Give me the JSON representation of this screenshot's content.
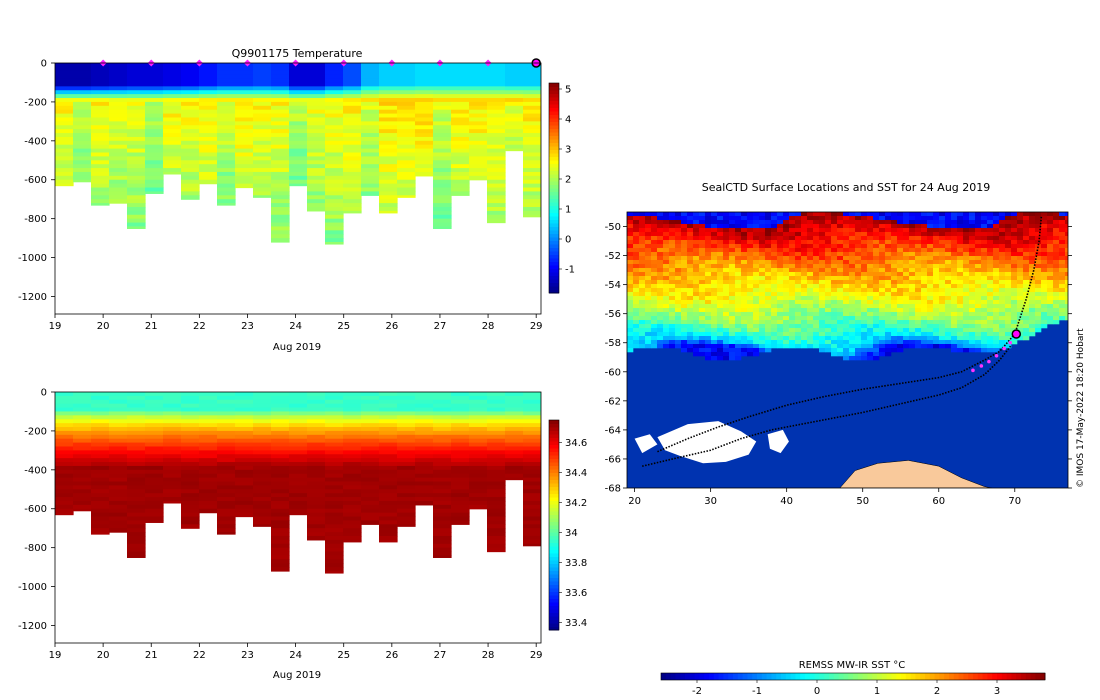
{
  "chart_data": [
    {
      "type": "heatmap",
      "title": "Q9901175  Temperature",
      "xlabel": "Aug 2019",
      "x_ticks": [
        "19",
        "20",
        "21",
        "22",
        "23",
        "24",
        "25",
        "26",
        "27",
        "28",
        "29"
      ],
      "xlim": [
        19,
        29.1
      ],
      "y_ticks": [
        "0",
        "-200",
        "-400",
        "-600",
        "-800",
        "-1000",
        "-1200"
      ],
      "ylim": [
        -1290,
        0
      ],
      "colorbar_ticks": [
        "5",
        "4",
        "3",
        "2",
        "1",
        "0",
        "-1"
      ],
      "colorbar_range": [
        -1.8,
        5.2
      ],
      "profile_markers_x": [
        20,
        21,
        22,
        23,
        24,
        25,
        26,
        27,
        28
      ],
      "current_profile_x": 29,
      "profile_max_depth": [
        630,
        610,
        730,
        720,
        850,
        670,
        570,
        700,
        620,
        730,
        640,
        690,
        920,
        630,
        760,
        930,
        770,
        680,
        770,
        690,
        580,
        850,
        680,
        600,
        820,
        450,
        790
      ],
      "column_values": [
        {
          "surface": -1.5,
          "below_200": 2.6
        },
        {
          "surface": -1.4,
          "below_200": 2.6
        },
        {
          "surface": -1.3,
          "below_200": 2.5
        },
        {
          "surface": -1.2,
          "below_200": 2.5
        },
        {
          "surface": -1.1,
          "below_200": 2.6
        },
        {
          "surface": -1.0,
          "below_200": 2.6
        },
        {
          "surface": -0.8,
          "below_200": 2.7
        },
        {
          "surface": -0.6,
          "below_200": 2.7
        },
        {
          "surface": -0.5,
          "below_200": 2.6
        },
        {
          "surface": -0.6,
          "below_200": 2.6
        },
        {
          "surface": -1.2,
          "below_200": 2.5
        },
        {
          "surface": -0.7,
          "below_200": 2.6
        },
        {
          "surface": -0.4,
          "below_200": 2.7
        },
        {
          "surface": 0.3,
          "below_200": 2.7
        },
        {
          "surface": 0.5,
          "below_200": 2.8
        },
        {
          "surface": 0.6,
          "below_200": 2.8
        },
        {
          "surface": 0.6,
          "below_200": 2.7
        },
        {
          "surface": 0.6,
          "below_200": 2.7
        },
        {
          "surface": 0.6,
          "below_200": 2.7
        },
        {
          "surface": 0.5,
          "below_200": 2.8
        },
        {
          "surface": 0.5,
          "below_200": 2.7
        }
      ]
    },
    {
      "type": "heatmap",
      "title": "",
      "xlabel": "Aug 2019",
      "x_ticks": [
        "19",
        "20",
        "21",
        "22",
        "23",
        "24",
        "25",
        "26",
        "27",
        "28",
        "29"
      ],
      "xlim": [
        19,
        29.1
      ],
      "y_ticks": [
        "0",
        "-200",
        "-400",
        "-600",
        "-800",
        "-1000",
        "-1200"
      ],
      "ylim": [
        -1290,
        0
      ],
      "colorbar_ticks": [
        "34.6",
        "34.4",
        "34.2",
        "34",
        "33.8",
        "33.6",
        "33.4"
      ],
      "colorbar_range": [
        33.35,
        34.75
      ],
      "surface_salinity": 33.95,
      "deep_salinity": 34.72
    },
    {
      "type": "heatmap",
      "title": "SealCTD Surface Locations and SST for 24 Aug 2019",
      "xlabel": "",
      "x_ticks": [
        "20",
        "30",
        "40",
        "50",
        "60",
        "70"
      ],
      "xlim": [
        19,
        77
      ],
      "y_ticks": [
        "-50",
        "-52",
        "-54",
        "-56",
        "-58",
        "-60",
        "-62",
        "-64",
        "-66",
        "-68"
      ],
      "ylim": [
        -68,
        -49
      ],
      "colorbar_label": "REMSS MW-IR SST °C",
      "colorbar_ticks": [
        "-2",
        "-1",
        "0",
        "1",
        "2",
        "3"
      ],
      "colorbar_range": [
        -2.6,
        3.8
      ],
      "sst_zonal_profile": [
        {
          "lat": -49.5,
          "sst": 3.6
        },
        {
          "lat": -51,
          "sst": 2.8
        },
        {
          "lat": -53,
          "sst": 1.9
        },
        {
          "lat": -55,
          "sst": 1.2
        },
        {
          "lat": -56.5,
          "sst": 0.5
        },
        {
          "lat": -58,
          "sst": -0.5
        },
        {
          "lat": -58.6,
          "sst": -1.8
        },
        {
          "lat": -68,
          "sst": -1.8
        }
      ],
      "current_position": {
        "lon": 70.2,
        "lat": -57.4
      },
      "recent_positions": [
        {
          "lon": 64.5,
          "lat": -59.9
        },
        {
          "lon": 65.6,
          "lat": -59.6
        },
        {
          "lon": 66.6,
          "lat": -59.3
        },
        {
          "lon": 67.6,
          "lat": -58.9
        },
        {
          "lon": 68.6,
          "lat": -58.4
        },
        {
          "lon": 69.4,
          "lat": -58.0
        }
      ],
      "track_a": [
        [
          23,
          -65.5
        ],
        [
          27,
          -64.6
        ],
        [
          31,
          -63.8
        ],
        [
          35,
          -63.1
        ],
        [
          40,
          -62.3
        ],
        [
          45,
          -61.7
        ],
        [
          50,
          -61.2
        ],
        [
          55,
          -60.8
        ],
        [
          60,
          -60.4
        ],
        [
          63,
          -60.0
        ],
        [
          66,
          -59.2
        ],
        [
          68,
          -58.6
        ],
        [
          70,
          -57.4
        ],
        [
          71.5,
          -55
        ],
        [
          72.5,
          -53
        ],
        [
          73.2,
          -51
        ],
        [
          73.5,
          -49.3
        ]
      ],
      "track_b": [
        [
          21,
          -66.5
        ],
        [
          25,
          -66.0
        ],
        [
          30,
          -65.4
        ],
        [
          34,
          -64.6
        ],
        [
          38,
          -64.0
        ],
        [
          42,
          -63.6
        ],
        [
          46,
          -63.2
        ],
        [
          50,
          -62.8
        ],
        [
          55,
          -62.2
        ],
        [
          60,
          -61.6
        ],
        [
          63,
          -61.1
        ],
        [
          66,
          -60.2
        ],
        [
          68,
          -59.2
        ],
        [
          69.5,
          -58.2
        ]
      ],
      "credit": "© IMOS 17-May-2022 18:20 Hobart"
    }
  ]
}
